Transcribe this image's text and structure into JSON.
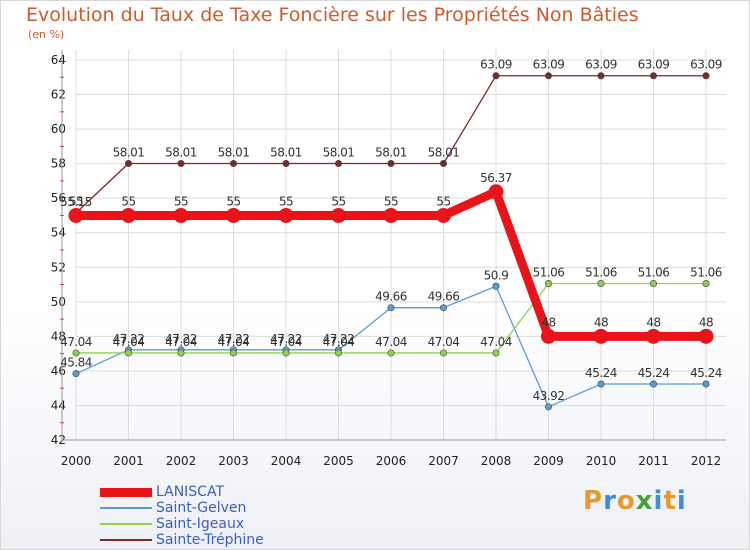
{
  "header": {
    "title": "Evolution du Taux de Taxe Foncière sur les Propriétés Non Bâties",
    "unit": "(en %)"
  },
  "logo": {
    "text": "Proxiti",
    "colors": [
      "#e69a2b",
      "#3a8fd6",
      "#e69a2b",
      "#4aa03a",
      "#3a8fd6",
      "#e69a2b",
      "#3a8fd6"
    ]
  },
  "chart_data": {
    "type": "line",
    "title": "Evolution du Taux de Taxe Foncière sur les Propriétés Non Bâties",
    "ylabel": "(en %)",
    "xlabel": "",
    "categories": [
      "2000",
      "2001",
      "2002",
      "2003",
      "2004",
      "2005",
      "2006",
      "2007",
      "2008",
      "2009",
      "2010",
      "2011",
      "2012"
    ],
    "yticks": [
      42,
      44,
      46,
      48,
      50,
      52,
      54,
      56,
      58,
      60,
      62,
      64
    ],
    "ylim": [
      42,
      64
    ],
    "grid": true,
    "series": [
      {
        "name": "Sainte-Tréphine",
        "color": "#7a2a2a",
        "bold": false,
        "values": [
          55.15,
          58.01,
          58.01,
          58.01,
          58.01,
          58.01,
          58.01,
          58.01,
          63.09,
          63.09,
          63.09,
          63.09,
          63.09
        ],
        "labels": [
          "55.15",
          "58.01",
          "58.01",
          "58.01",
          "58.01",
          "58.01",
          "58.01",
          "58.01",
          "63.09",
          "63.09",
          "63.09",
          "63.09",
          "63.09"
        ]
      },
      {
        "name": "Saint-Gelven",
        "color": "#5b9bd1",
        "bold": false,
        "values": [
          45.84,
          47.22,
          47.22,
          47.22,
          47.22,
          47.22,
          49.66,
          49.66,
          50.9,
          43.92,
          45.24,
          45.24,
          45.24
        ],
        "labels": [
          "45.84",
          "47.22",
          "47.22",
          "47.22",
          "47.22",
          "47.22",
          "49.66",
          "49.66",
          "50.9",
          "43.92",
          "45.24",
          "45.24",
          "45.24"
        ]
      },
      {
        "name": "Saint-Igeaux",
        "color": "#8fd14f",
        "bold": false,
        "values": [
          47.04,
          47.04,
          47.04,
          47.04,
          47.04,
          47.04,
          47.04,
          47.04,
          47.04,
          51.06,
          51.06,
          51.06,
          51.06
        ],
        "labels": [
          "47.04",
          "47.04",
          "47.04",
          "47.04",
          "47.04",
          "47.04",
          "47.04",
          "47.04",
          "47.04",
          "51.06",
          "51.06",
          "51.06",
          "51.06"
        ]
      },
      {
        "name": "LANISCAT",
        "color": "#e8141a",
        "bold": true,
        "values": [
          55,
          55,
          55,
          55,
          55,
          55,
          55,
          55,
          56.37,
          48,
          48,
          48,
          48
        ],
        "labels": [
          "55",
          "55",
          "55",
          "55",
          "55",
          "55",
          "55",
          "55",
          "56.37",
          "48",
          "48",
          "48",
          "48"
        ]
      }
    ],
    "legend_order": [
      "LANISCAT",
      "Saint-Gelven",
      "Saint-Igeaux",
      "Sainte-Tréphine"
    ],
    "legend_placement": "bottom-left"
  }
}
